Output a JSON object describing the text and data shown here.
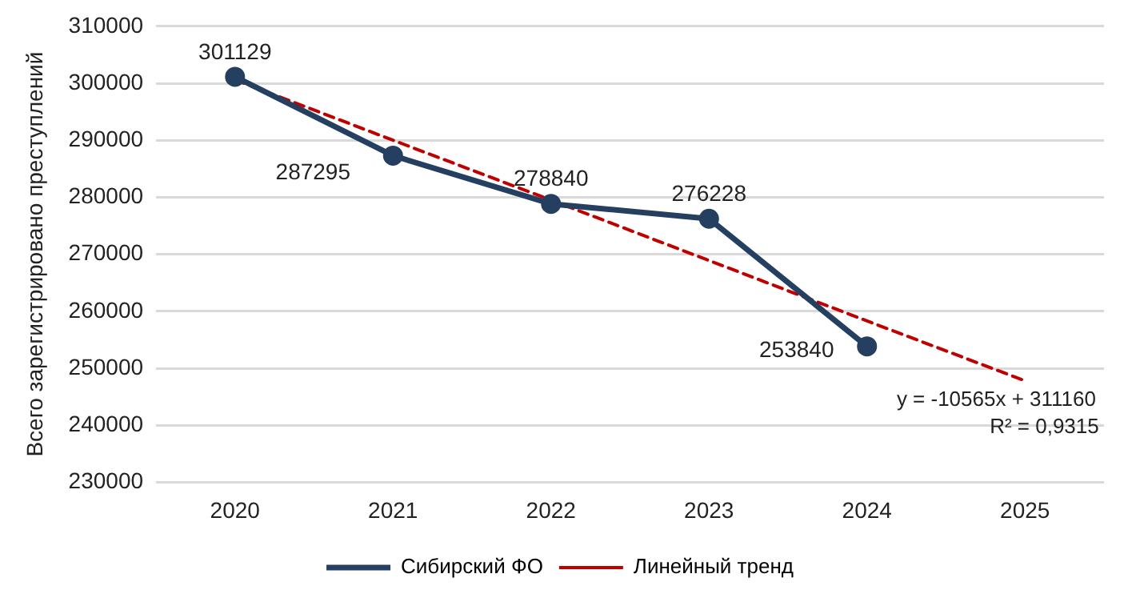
{
  "chart_data": {
    "type": "line",
    "ylabel": "Всего зарегистрировано преступлений",
    "categories": [
      "2020",
      "2021",
      "2022",
      "2023",
      "2024",
      "2025"
    ],
    "series": [
      {
        "name": "Сибирский ФО",
        "color": "#243f60",
        "values": [
          301129,
          287295,
          278840,
          276228,
          253840,
          null
        ],
        "value_labels": [
          "301129",
          "287295",
          "278840",
          "276228",
          "253840",
          null
        ],
        "marker": "circle",
        "line_style": "solid"
      },
      {
        "name": "Линейный тренд",
        "color": "#c00000",
        "values": [
          300600,
          290000,
          279500,
          268900,
          258300,
          247800
        ],
        "marker": "none",
        "line_style": "dashed"
      }
    ],
    "ylim": [
      230000,
      310000
    ],
    "yticks": [
      230000,
      240000,
      250000,
      260000,
      270000,
      280000,
      290000,
      300000,
      310000
    ],
    "grid": "y",
    "legend": "bottom",
    "annotations": [
      "y = -10565x + 311160",
      "R² = 0,9315"
    ]
  }
}
